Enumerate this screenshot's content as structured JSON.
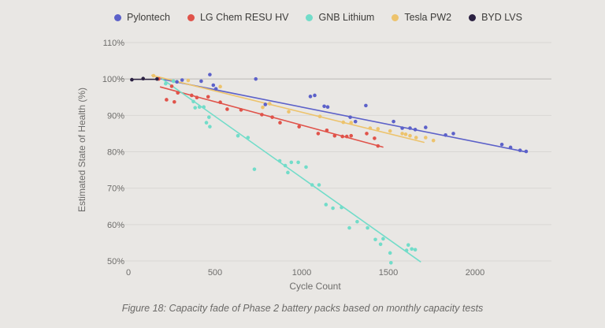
{
  "caption": "Figure 18: Capacity fade of Phase 2 battery packs based on monthly capacity tests",
  "colors": {
    "background": "#e9e7e4",
    "gridline": "#d9d7d4",
    "gridline_emphasis": "#bcbab7",
    "axis_text": "#6e6d6b",
    "legend_text": "#3d3c3a",
    "caption_text": "#6b6a68"
  },
  "chart_data": {
    "type": "scatter",
    "title": "",
    "xlabel": "Cycle Count",
    "ylabel": "Estimated State of Health (%)",
    "xlim": [
      0,
      2450
    ],
    "ylim_percent": [
      50,
      110
    ],
    "x_ticks": [
      0,
      500,
      1000,
      1500,
      2000
    ],
    "y_ticks_percent": [
      110,
      100,
      90,
      80,
      70,
      60,
      50
    ],
    "y_tick_suffix": "%",
    "grid": true,
    "emphasis_gridline_percent": 100,
    "legend_position": "top",
    "series": [
      {
        "name": "Pylontech",
        "color": "#5c61c9",
        "trend": [
          [
            190,
            100.0
          ],
          [
            2300,
            79.9
          ]
        ],
        "points": [
          [
            280,
            99.2
          ],
          [
            310,
            99.7
          ],
          [
            420,
            99.4
          ],
          [
            470,
            101.2
          ],
          [
            490,
            98.3
          ],
          [
            505,
            97.3
          ],
          [
            735,
            100.0
          ],
          [
            790,
            93.0
          ],
          [
            1050,
            95.2
          ],
          [
            1075,
            95.5
          ],
          [
            1130,
            92.5
          ],
          [
            1150,
            92.3
          ],
          [
            1280,
            89.5
          ],
          [
            1310,
            88.3
          ],
          [
            1370,
            92.7
          ],
          [
            1530,
            88.3
          ],
          [
            1580,
            86.5
          ],
          [
            1625,
            86.5
          ],
          [
            1655,
            86.1
          ],
          [
            1715,
            86.7
          ],
          [
            1830,
            84.6
          ],
          [
            1875,
            85.0
          ],
          [
            2155,
            82.0
          ],
          [
            2205,
            81.2
          ],
          [
            2260,
            80.4
          ],
          [
            2295,
            80.1
          ]
        ]
      },
      {
        "name": "LG Chem RESU HV",
        "color": "#e0534a",
        "trend": [
          [
            185,
            97.8
          ],
          [
            1468,
            81.3
          ]
        ],
        "points": [
          [
            175,
            100.0
          ],
          [
            220,
            94.3
          ],
          [
            250,
            98.0
          ],
          [
            265,
            93.7
          ],
          [
            285,
            96.2
          ],
          [
            365,
            95.5
          ],
          [
            395,
            94.9
          ],
          [
            460,
            95.1
          ],
          [
            530,
            93.6
          ],
          [
            570,
            91.7
          ],
          [
            650,
            91.5
          ],
          [
            770,
            90.2
          ],
          [
            830,
            89.5
          ],
          [
            875,
            88.0
          ],
          [
            985,
            86.9
          ],
          [
            1095,
            85.0
          ],
          [
            1145,
            85.9
          ],
          [
            1190,
            84.4
          ],
          [
            1235,
            84.2
          ],
          [
            1260,
            84.2
          ],
          [
            1285,
            84.4
          ],
          [
            1375,
            85.0
          ],
          [
            1420,
            83.7
          ],
          [
            1440,
            81.6
          ]
        ]
      },
      {
        "name": "GNB Lithium",
        "color": "#72dcc9",
        "trend": [
          [
            195,
            100.0
          ],
          [
            1685,
            49.8
          ]
        ],
        "points": [
          [
            215,
            98.7
          ],
          [
            260,
            99.4
          ],
          [
            375,
            93.8
          ],
          [
            385,
            92.1
          ],
          [
            410,
            92.3
          ],
          [
            435,
            92.3
          ],
          [
            450,
            88.0
          ],
          [
            465,
            89.5
          ],
          [
            470,
            86.9
          ],
          [
            632,
            84.4
          ],
          [
            690,
            83.9
          ],
          [
            727,
            75.2
          ],
          [
            873,
            77.5
          ],
          [
            905,
            76.2
          ],
          [
            920,
            74.3
          ],
          [
            940,
            77.1
          ],
          [
            980,
            77.1
          ],
          [
            1025,
            75.8
          ],
          [
            1060,
            70.9
          ],
          [
            1100,
            70.9
          ],
          [
            1140,
            65.5
          ],
          [
            1180,
            64.5
          ],
          [
            1230,
            64.7
          ],
          [
            1275,
            59.1
          ],
          [
            1320,
            60.8
          ],
          [
            1380,
            59.1
          ],
          [
            1425,
            55.9
          ],
          [
            1455,
            54.6
          ],
          [
            1470,
            56.1
          ],
          [
            1510,
            52.2
          ],
          [
            1515,
            49.5
          ],
          [
            1605,
            52.9
          ],
          [
            1615,
            54.4
          ],
          [
            1635,
            53.3
          ],
          [
            1655,
            53.1
          ]
        ]
      },
      {
        "name": "Tesla PW2",
        "color": "#edc36c",
        "trend": [
          [
            135,
            101.0
          ],
          [
            1705,
            82.6
          ]
        ],
        "points": [
          [
            145,
            100.9
          ],
          [
            345,
            99.6
          ],
          [
            530,
            97.9
          ],
          [
            775,
            92.2
          ],
          [
            815,
            93.2
          ],
          [
            925,
            91.0
          ],
          [
            1105,
            89.7
          ],
          [
            1240,
            88.1
          ],
          [
            1285,
            88.0
          ],
          [
            1395,
            86.5
          ],
          [
            1440,
            86.3
          ],
          [
            1510,
            85.7
          ],
          [
            1580,
            85.0
          ],
          [
            1600,
            84.8
          ],
          [
            1625,
            84.4
          ],
          [
            1660,
            83.9
          ],
          [
            1715,
            83.9
          ],
          [
            1760,
            83.1
          ]
        ]
      },
      {
        "name": "BYD LVS",
        "color": "#2b2142",
        "trend": [
          [
            15,
            99.9
          ],
          [
            170,
            99.9
          ]
        ],
        "points": [
          [
            20,
            99.8
          ],
          [
            85,
            100.1
          ],
          [
            165,
            100.0
          ]
        ]
      }
    ]
  }
}
